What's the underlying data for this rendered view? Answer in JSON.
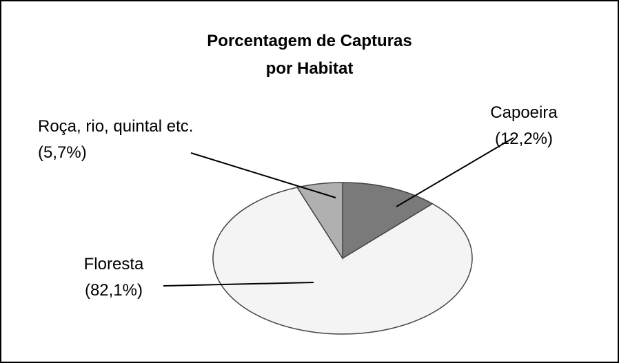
{
  "chart_data": {
    "type": "pie",
    "title": "Porcentagem de Capturas por Habitat",
    "categories": [
      "Capoeira",
      "Floresta",
      "Roça, rio, quintal etc."
    ],
    "values": [
      12.2,
      82.1,
      5.7
    ],
    "value_labels": [
      "(12,2%)",
      "(82,1%)",
      "(5,7%)"
    ],
    "colors": [
      "#7a7a7a",
      "#f4f4f4",
      "#b0b0b0"
    ]
  }
}
